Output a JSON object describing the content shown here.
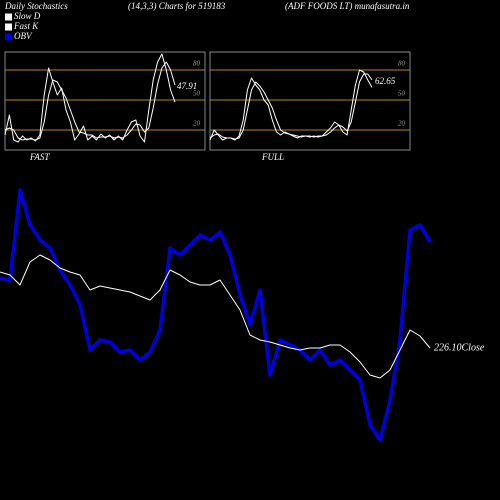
{
  "header": {
    "title": "Daily Stochastics",
    "subtitle": "(14,3,3) Charts for 519183",
    "source": "(ADF FOODS LT) munafasutra.in"
  },
  "legend": [
    {
      "name": "Slow  D",
      "color": "#ffffff"
    },
    {
      "name": "Fast K",
      "color": "#ffffff"
    },
    {
      "name": "OBV",
      "color": "#0000dd"
    }
  ],
  "chart_data": [
    {
      "type": "line",
      "title": "FAST",
      "annotation": "47.91",
      "ylim": [
        0,
        100
      ],
      "yticks": [
        20,
        50,
        80
      ],
      "grid": true,
      "grid_color": "#b8860b",
      "series": [
        {
          "color": "#ffffff",
          "values": [
            15,
            35,
            10,
            8,
            14,
            10,
            12,
            9,
            15,
            55,
            82,
            68,
            55,
            62,
            40,
            28,
            10,
            16,
            24,
            10,
            14,
            10,
            16,
            12,
            15,
            10,
            14,
            10,
            20,
            28,
            30,
            14,
            8,
            40,
            70,
            88,
            96,
            80,
            60,
            47.91
          ]
        },
        {
          "color": "#ffffff",
          "values": [
            20,
            22,
            20,
            12,
            10,
            11,
            11,
            10,
            12,
            28,
            55,
            70,
            68,
            60,
            52,
            40,
            28,
            18,
            17,
            15,
            15,
            12,
            13,
            13,
            14,
            12,
            13,
            12,
            15,
            20,
            26,
            25,
            18,
            22,
            42,
            66,
            82,
            88,
            80,
            65
          ]
        }
      ]
    },
    {
      "type": "line",
      "title": "FULL",
      "annotation": "62.65",
      "ylim": [
        0,
        100
      ],
      "yticks": [
        20,
        50,
        80
      ],
      "grid": true,
      "grid_color": "#b8860b",
      "series": [
        {
          "color": "#ffffff",
          "values": [
            10,
            20,
            15,
            10,
            12,
            12,
            10,
            14,
            30,
            60,
            72,
            65,
            60,
            50,
            45,
            30,
            18,
            15,
            18,
            16,
            14,
            12,
            14,
            14,
            13,
            14,
            13,
            14,
            18,
            22,
            28,
            25,
            18,
            15,
            40,
            65,
            80,
            78,
            70,
            62.65
          ]
        },
        {
          "color": "#ffffff",
          "values": [
            12,
            15,
            16,
            13,
            12,
            12,
            11,
            12,
            20,
            40,
            60,
            68,
            64,
            58,
            50,
            42,
            30,
            20,
            17,
            16,
            15,
            14,
            13,
            14,
            14,
            13,
            14,
            14,
            15,
            18,
            22,
            25,
            23,
            19,
            28,
            48,
            68,
            76,
            76,
            70
          ]
        }
      ]
    },
    {
      "type": "line",
      "annotation": "226.10Close",
      "ylim": [
        175.1,
        310.1
      ],
      "y2lim": [
        50,
        320
      ],
      "series": [
        {
          "color": "#0000dd",
          "axis": "y2",
          "values": [
            222,
            220,
            310,
            275,
            260,
            252,
            230,
            215,
            195,
            150,
            160,
            158,
            148,
            150,
            140,
            148,
            170,
            252,
            245,
            255,
            265,
            260,
            268,
            245,
            205,
            175,
            210,
            125,
            160,
            155,
            150,
            140,
            150,
            135,
            140,
            130,
            120,
            75,
            60,
            100,
            160,
            270,
            275,
            258
          ]
        },
        {
          "color": "#ffffff",
          "values": [
            264.1,
            262.6,
            257.6,
            269.1,
            272.6,
            270.1,
            266.1,
            264.1,
            262.6,
            255.1,
            257.1,
            256.1,
            255.1,
            254.1,
            252.1,
            250.1,
            255.1,
            265.1,
            262.6,
            259.1,
            257.6,
            257.6,
            260.1,
            252.6,
            245.1,
            232.6,
            230.1,
            229.1,
            227.6,
            226.1,
            225.1,
            226.1,
            226.1,
            227.6,
            227.6,
            224.1,
            219.1,
            212.6,
            211.1,
            215.1,
            225.1,
            235.1,
            232.1,
            226.1
          ]
        }
      ]
    }
  ]
}
